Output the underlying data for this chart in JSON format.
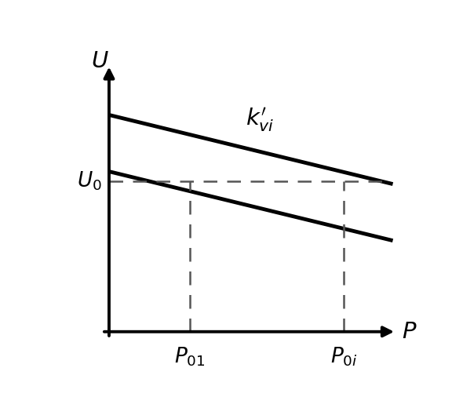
{
  "background_color": "#ffffff",
  "line_color": "#000000",
  "dashed_color": "#555555",
  "x_min": 0,
  "x_max": 10,
  "y_min": 0,
  "y_max": 10,
  "ax_origin_x": 1.5,
  "ax_origin_y": 1.0,
  "U0_y": 5.8,
  "P01_x": 3.8,
  "P0i_x": 8.2,
  "line1_x_start": 1.5,
  "line1_x_end": 9.6,
  "line1_y_start": 7.9,
  "line1_y_end": 5.7,
  "line2_x_start": 1.5,
  "line2_x_end": 9.6,
  "line2_y_start": 6.1,
  "line2_y_end": 3.9,
  "line_lw": 3.5,
  "dashed_lw": 1.8,
  "U_label": "$U$",
  "P_label": "$P$",
  "U0_label": "$U_0$",
  "P01_label": "$P_{01}$",
  "P0i_label": "$P_{0i}$",
  "kvi_label": "$k^{\\prime}_{vi}$",
  "label_fontsize": 19,
  "axis_label_fontsize": 21
}
